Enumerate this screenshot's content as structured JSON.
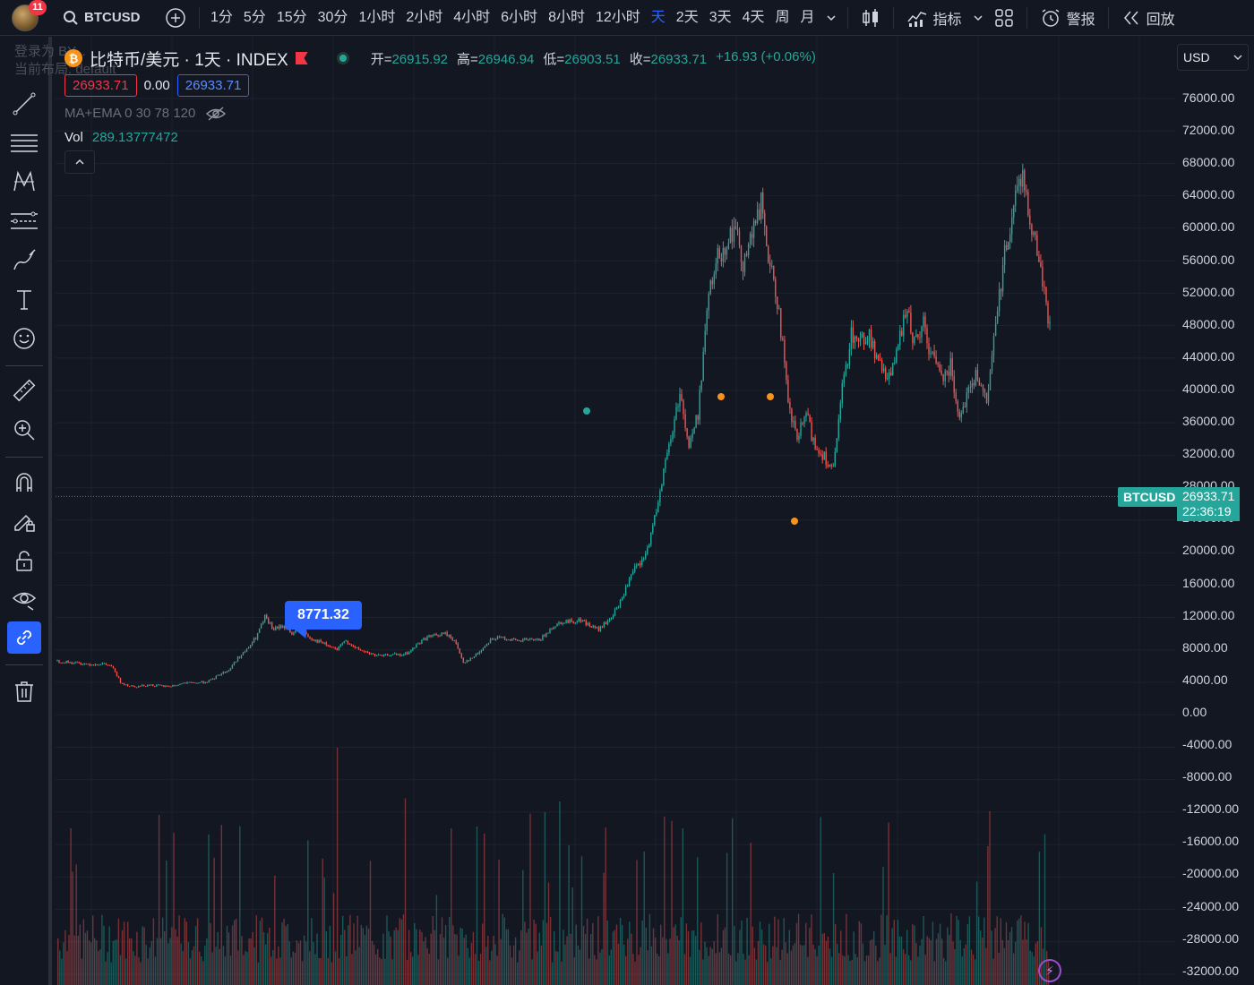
{
  "toolbar": {
    "notification_count": "11",
    "symbol": "BTCUSD",
    "timeframes": [
      "1分",
      "5分",
      "15分",
      "30分",
      "1小时",
      "2小时",
      "4小时",
      "6小时",
      "8小时",
      "12小时",
      "天",
      "2天",
      "3天",
      "4天",
      "周",
      "月"
    ],
    "active_timeframe": "天",
    "indicators_label": "指标",
    "alerts_label": "警报",
    "replay_label": "回放"
  },
  "login_overlay": {
    "line1": "登录为 BY...",
    "line2": "当前布局: default"
  },
  "legend": {
    "title": "比特币/美元 · 1天 · INDEX",
    "open_label": "开=",
    "open": "26915.92",
    "high_label": "高=",
    "high": "26946.94",
    "low_label": "低=",
    "low": "26903.51",
    "close_label": "收=",
    "close": "26933.71",
    "change": "+16.93 (+0.06%)",
    "sell_price": "26933.71",
    "spread": "0.00",
    "buy_price": "26933.71",
    "indicator": "MA+EMA 0 30 78 120",
    "vol_label": "Vol",
    "vol_value": "289.13777472"
  },
  "currency": "USD",
  "price_scale": [
    "76000.00",
    "72000.00",
    "68000.00",
    "64000.00",
    "60000.00",
    "56000.00",
    "52000.00",
    "48000.00",
    "44000.00",
    "40000.00",
    "36000.00",
    "32000.00",
    "28000.00",
    "24000.00",
    "20000.00",
    "16000.00",
    "12000.00",
    "8000.00",
    "4000.00",
    "0.00",
    "-4000.00",
    "-8000.00",
    "-12000.00",
    "-16000.00",
    "-20000.00",
    "-24000.00",
    "-28000.00",
    "-32000.00"
  ],
  "last_price": {
    "symbol": "BTCUSD",
    "price": "26933.71",
    "countdown": "22:36:19"
  },
  "callout": "8771.32",
  "chart_data": {
    "type": "line",
    "title": "比特币/美元 · 1天 · INDEX",
    "ylim": [
      -32000,
      76000
    ],
    "series": [
      {
        "name": "BTCUSD",
        "x_index": [
          0,
          10,
          20,
          30,
          40,
          50,
          60,
          70,
          80,
          90,
          100,
          110,
          120,
          130,
          140,
          150,
          160,
          170,
          180,
          190,
          200,
          210,
          220,
          230,
          240,
          250,
          260,
          270,
          280,
          290,
          300,
          310,
          320,
          330,
          340,
          350,
          360,
          370,
          380,
          390,
          400,
          410,
          420,
          430,
          440,
          450,
          460,
          470,
          480,
          490,
          500,
          510,
          520,
          530,
          540,
          550,
          560,
          570,
          580,
          590,
          600,
          610,
          620,
          630,
          640,
          650,
          660,
          670,
          680,
          690,
          700,
          710,
          720,
          730,
          740,
          750,
          760,
          770,
          780,
          790,
          800,
          810,
          820,
          830,
          840,
          850,
          860,
          870,
          880,
          890,
          900,
          910,
          920,
          930,
          940,
          950,
          960,
          970,
          980,
          990,
          1000,
          1010,
          1020,
          1030,
          1040,
          1050,
          1060,
          1070,
          1080,
          1090,
          1100
        ],
        "values": [
          6600,
          6500,
          6400,
          6300,
          6200,
          6300,
          6000,
          4000,
          3600,
          3500,
          3700,
          3600,
          3500,
          3600,
          3900,
          3900,
          4000,
          4200,
          5000,
          5500,
          7000,
          8000,
          9500,
          12000,
          10500,
          11000,
          10000,
          10500,
          9500,
          9000,
          8500,
          8000,
          9200,
          8200,
          7800,
          7400,
          7200,
          7500,
          7300,
          7700,
          8800,
          9600,
          9800,
          10000,
          9200,
          6500,
          7000,
          8000,
          9300,
          9500,
          9400,
          9000,
          9300,
          9100,
          9700,
          11000,
          11500,
          11500,
          11700,
          11000,
          10500,
          11500,
          13000,
          15500,
          18000,
          19000,
          23000,
          29000,
          34000,
          40000,
          33000,
          37000,
          50000,
          56000,
          58000,
          60000,
          56000,
          59000,
          63000,
          55000,
          50000,
          38000,
          34000,
          37000,
          33000,
          32000,
          30000,
          40000,
          47000,
          46000,
          47000,
          43000,
          42000,
          44000,
          50000,
          46000,
          48000,
          44000,
          42000,
          43000,
          37000,
          40000,
          42000,
          38000,
          48000,
          57000,
          63000,
          67000,
          60000,
          55000,
          48000
        ]
      }
    ]
  }
}
